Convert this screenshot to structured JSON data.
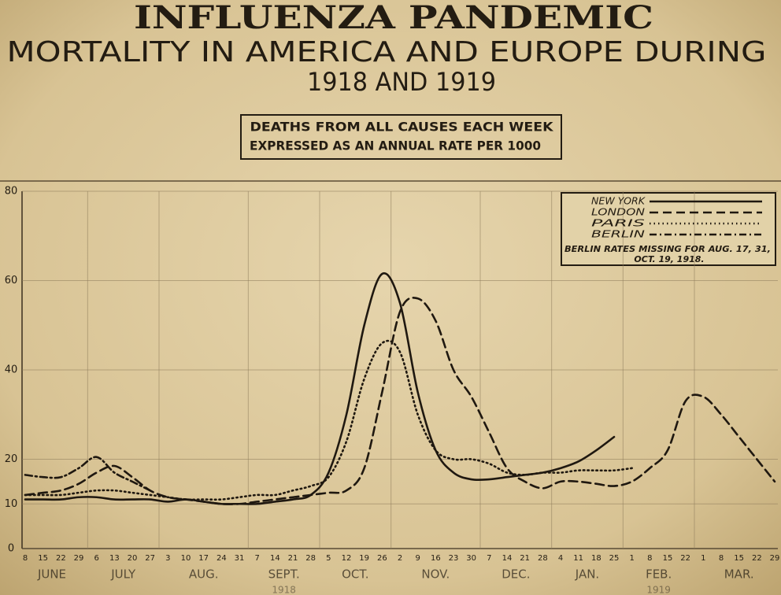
{
  "chart_data": {
    "type": "line",
    "title": "INFLUENZA PANDEMIC",
    "subtitle": "MORTALITY IN AMERICA AND EUROPE DURING",
    "subtitle_years": "1918 AND 1919",
    "y_axis_note": [
      "DEATHS FROM ALL CAUSES EACH WEEK",
      "EXPRESSED AS AN ANNUAL RATE PER 1000"
    ],
    "legend_note": [
      "BERLIN RATES MISSING FOR AUG. 17, 31,",
      "OCT. 19, 1918."
    ],
    "legend_position": "upper right",
    "grid": true,
    "categories": [
      "8",
      "15",
      "22",
      "29",
      "6",
      "13",
      "20",
      "27",
      "3",
      "10",
      "17",
      "24",
      "31",
      "7",
      "14",
      "21",
      "28",
      "5",
      "12",
      "19",
      "26",
      "2",
      "9",
      "16",
      "23",
      "30",
      "7",
      "14",
      "21",
      "28",
      "4",
      "11",
      "18",
      "25",
      "1",
      "8",
      "15",
      "22",
      "1",
      "8",
      "15",
      "22",
      "29"
    ],
    "months": [
      "JUNE",
      "JULY",
      "AUG.",
      "SEPT.",
      "OCT.",
      "NOV.",
      "DEC.",
      "JAN.",
      "FEB.",
      "MAR."
    ],
    "year_labels": [
      "1918",
      "1919"
    ],
    "ylim": [
      0,
      80
    ],
    "yticks": [
      0,
      10,
      20,
      40,
      60,
      80
    ],
    "series": [
      {
        "name": "NEW YORK",
        "color": "#1f1810",
        "line_style": "solid",
        "values": [
          11,
          11,
          11,
          11.5,
          11.5,
          11,
          11,
          11,
          10.5,
          11,
          10.5,
          10,
          10,
          10,
          10.5,
          11,
          12,
          17,
          30,
          50,
          61.5,
          55,
          35,
          22,
          17,
          15.5,
          15.5,
          16,
          16.5,
          17,
          18,
          19.5,
          22,
          25,
          null,
          null,
          null,
          null,
          null,
          null,
          null,
          null,
          null
        ]
      },
      {
        "name": "LONDON",
        "color": "#1f1810",
        "line_style": "dashed",
        "values": [
          12,
          12.5,
          13,
          14.5,
          17,
          18.5,
          16,
          13,
          11.5,
          11,
          10.5,
          10,
          10,
          10.5,
          11,
          11.5,
          12,
          12.5,
          13,
          18,
          35,
          53,
          56,
          51,
          40,
          34,
          26,
          18,
          15,
          13.5,
          15,
          15,
          14.5,
          14,
          15,
          18,
          22,
          33,
          34,
          30,
          25,
          20,
          15
        ]
      },
      {
        "name": "PARIS",
        "color": "#1f1810",
        "line_style": "dotted",
        "values": [
          12,
          12,
          12,
          12.5,
          13,
          13,
          12.5,
          12,
          11.5,
          11,
          11,
          11,
          11.5,
          12,
          12,
          13,
          14,
          16,
          24,
          38,
          46,
          44,
          30,
          22,
          20,
          20,
          19,
          17,
          16.5,
          17,
          17,
          17.5,
          17.5,
          17.5,
          18,
          null,
          null,
          null,
          null,
          null,
          null,
          null,
          null
        ]
      },
      {
        "name": "BERLIN",
        "color": "#1f1810",
        "line_style": "dashdot",
        "values": [
          16.5,
          16,
          16,
          18,
          20.5,
          17,
          15,
          13,
          null,
          null,
          null,
          null,
          null,
          null,
          null,
          null,
          null,
          null,
          null,
          null,
          null,
          null,
          null,
          null,
          null,
          null,
          null,
          null,
          null,
          null,
          null,
          null,
          null,
          null,
          null,
          null,
          null,
          null,
          null,
          null,
          null,
          null,
          null
        ]
      }
    ]
  }
}
